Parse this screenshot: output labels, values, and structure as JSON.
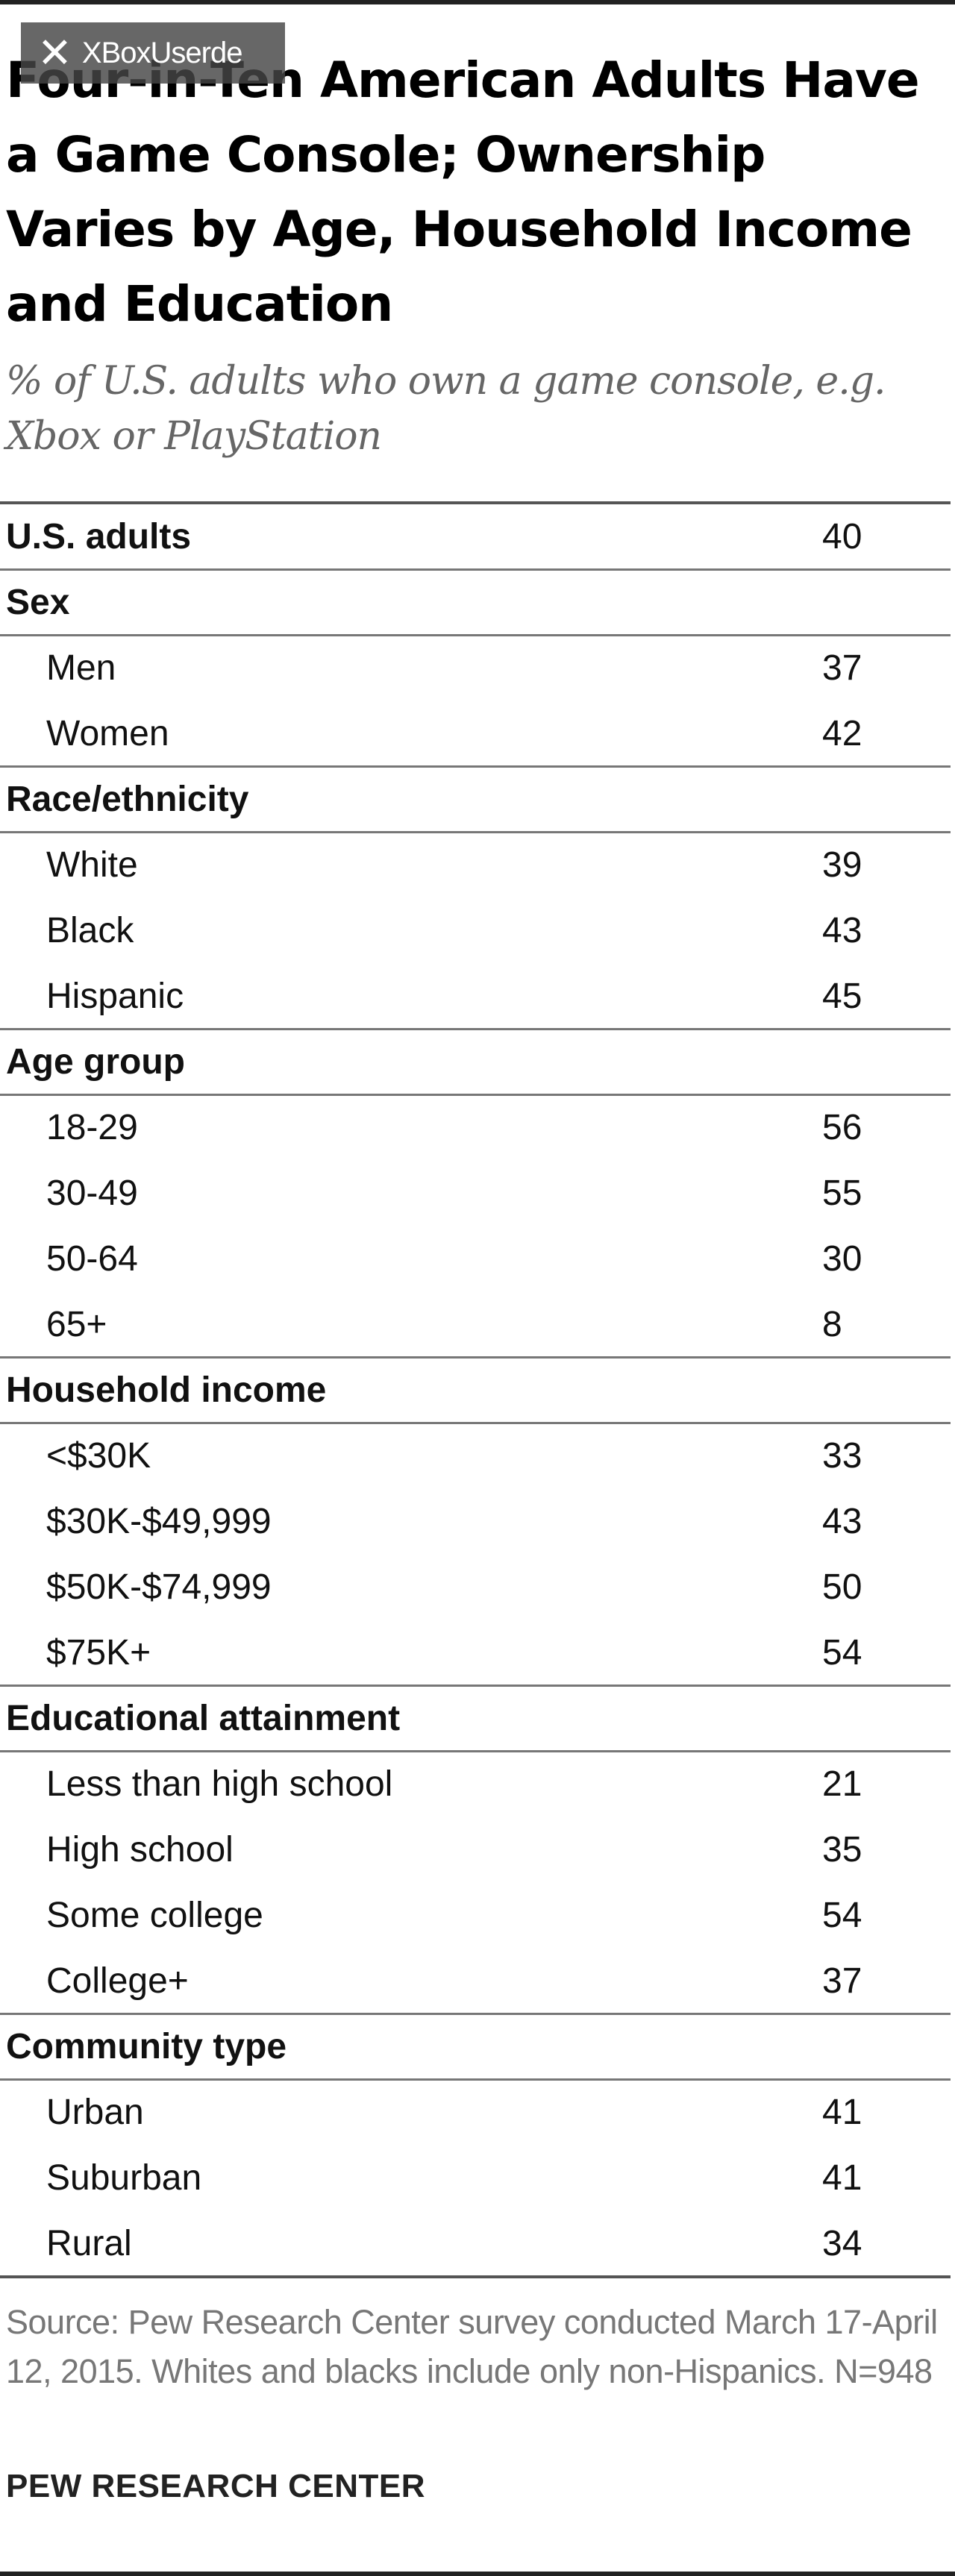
{
  "watermark": {
    "text": "XBoxUserde"
  },
  "chart_data": {
    "type": "table",
    "title": "Four-in-Ten American Adults Have a Game Console; Ownership Varies by Age, Household Income and Education",
    "subtitle": "% of U.S. adults who own a game console, e.g. Xbox or PlayStation",
    "rows": [
      {
        "label": "U.S. adults",
        "value": 40,
        "header": true
      },
      {
        "label": "Sex",
        "header": true
      },
      {
        "label": "Men",
        "value": 37
      },
      {
        "label": "Women",
        "value": 42
      },
      {
        "label": "Race/ethnicity",
        "header": true
      },
      {
        "label": "White",
        "value": 39
      },
      {
        "label": "Black",
        "value": 43
      },
      {
        "label": "Hispanic",
        "value": 45
      },
      {
        "label": "Age group",
        "header": true
      },
      {
        "label": "18-29",
        "value": 56
      },
      {
        "label": "30-49",
        "value": 55
      },
      {
        "label": "50-64",
        "value": 30
      },
      {
        "label": "65+",
        "value": 8
      },
      {
        "label": "Household income",
        "header": true
      },
      {
        "label": "<$30K",
        "value": 33
      },
      {
        "label": "$30K-$49,999",
        "value": 43
      },
      {
        "label": "$50K-$74,999",
        "value": 50
      },
      {
        "label": "$75K+",
        "value": 54
      },
      {
        "label": "Educational attainment",
        "header": true
      },
      {
        "label": "Less than high school",
        "value": 21
      },
      {
        "label": "High school",
        "value": 35
      },
      {
        "label": "Some college",
        "value": 54
      },
      {
        "label": "College+",
        "value": 37
      },
      {
        "label": "Community type",
        "header": true
      },
      {
        "label": "Urban",
        "value": 41
      },
      {
        "label": "Suburban",
        "value": 41
      },
      {
        "label": "Rural",
        "value": 34
      }
    ],
    "source": "Source: Pew Research Center survey conducted March 17-April 12, 2015. Whites and blacks include only non-Hispanics. N=948",
    "credit": "PEW RESEARCH CENTER"
  }
}
